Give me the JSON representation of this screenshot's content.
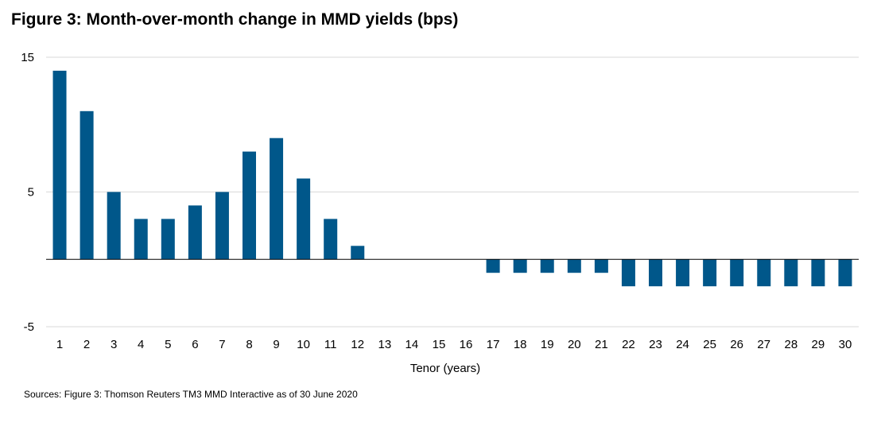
{
  "title": "Figure 3: Month-over-month change in MMD yields (bps)",
  "source": "Sources: Figure 3: Thomson Reuters TM3 MMD Interactive as of 30 June 2020",
  "colors": {
    "bar": "#00578a",
    "grid": "#d9d9d9",
    "axis": "#000000"
  },
  "chart_data": {
    "type": "bar",
    "title": "Figure 3: Month-over-month change in MMD yields (bps)",
    "xlabel": "Tenor (years)",
    "ylabel": "",
    "ylim": [
      -5,
      15
    ],
    "yticks": [
      -5,
      5,
      15
    ],
    "grid": true,
    "legend": "none",
    "categories": [
      "1",
      "2",
      "3",
      "4",
      "5",
      "6",
      "7",
      "8",
      "9",
      "10",
      "11",
      "12",
      "13",
      "14",
      "15",
      "16",
      "17",
      "18",
      "19",
      "20",
      "21",
      "22",
      "23",
      "24",
      "25",
      "26",
      "27",
      "28",
      "29",
      "30"
    ],
    "values": [
      14,
      11,
      5,
      3,
      3,
      4,
      5,
      8,
      9,
      6,
      3,
      1,
      0,
      0,
      0,
      0,
      -1,
      -1,
      -1,
      -1,
      -1,
      -2,
      -2,
      -2,
      -2,
      -2,
      -2,
      -2,
      -2,
      -2
    ]
  }
}
